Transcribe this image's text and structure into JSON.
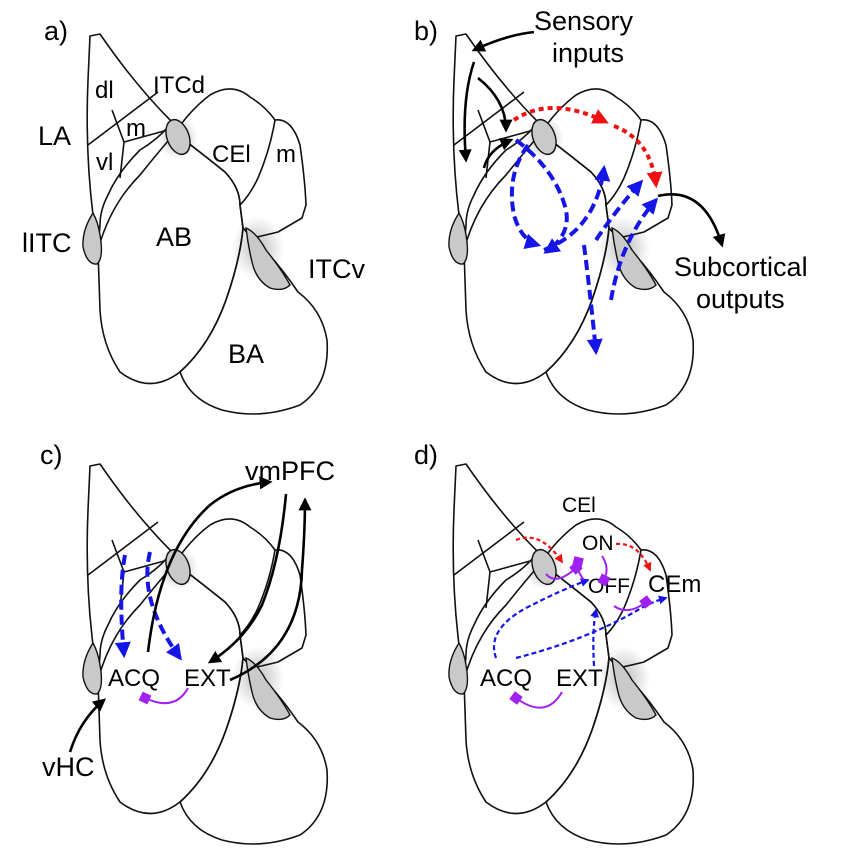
{
  "panels": {
    "a": {
      "letter": "a)",
      "labels": {
        "dl": "dl",
        "itcd": "ITCd",
        "la": "LA",
        "m_la": "m",
        "vl": "vl",
        "cel": "CEl",
        "m_ce": "m",
        "litc": "lITC",
        "ab": "AB",
        "itcv": "ITCv",
        "ba": "BA"
      }
    },
    "b": {
      "letter": "b)",
      "sensory_line1": "Sensory",
      "sensory_line2": "inputs",
      "subcortical_line1": "Subcortical",
      "subcortical_line2": "outputs"
    },
    "c": {
      "letter": "c)",
      "vmpfc": "vmPFC",
      "acq": "ACQ",
      "ext": "EXT",
      "vhc": "vHC"
    },
    "d": {
      "letter": "d)",
      "cel": "CEl",
      "on": "ON",
      "off": "OFF",
      "cem": "CEm",
      "acq": "ACQ",
      "ext": "EXT"
    }
  },
  "colors": {
    "outline": "#111111",
    "itc_fill": "#c9c9c9",
    "blue": "#1515e8",
    "red": "#ee1111",
    "purple": "#a020f0",
    "black": "#000000"
  }
}
